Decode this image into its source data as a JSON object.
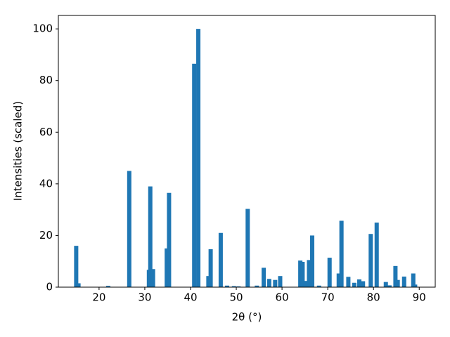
{
  "chart_data": {
    "type": "bar",
    "xlabel": "2θ (°)",
    "ylabel": "Intensities (scaled)",
    "x": [
      15.0,
      15.5,
      22.0,
      26.6,
      30.9,
      31.2,
      31.8,
      34.8,
      35.3,
      40.8,
      41.7,
      43.9,
      44.4,
      46.6,
      48.0,
      49.5,
      50.5,
      52.5,
      54.5,
      56.0,
      57.2,
      58.5,
      59.6,
      64.0,
      64.5,
      65.1,
      65.9,
      66.6,
      68.1,
      70.4,
      72.4,
      73.0,
      74.5,
      75.8,
      76.9,
      77.7,
      79.4,
      80.7,
      82.7,
      83.5,
      84.8,
      85.3,
      86.7,
      88.7,
      89.1
    ],
    "values": [
      16,
      1.5,
      0.5,
      45,
      6.7,
      39,
      7,
      15,
      36.5,
      86.5,
      100,
      4.3,
      14.7,
      21,
      0.6,
      0.4,
      0.3,
      30.3,
      0.6,
      7.5,
      3.2,
      2.8,
      4.3,
      10.3,
      9.8,
      2.4,
      10.5,
      20,
      0.6,
      11.4,
      5.3,
      25.7,
      4,
      1.7,
      3,
      2.3,
      20.6,
      25,
      2,
      0.7,
      8.2,
      2.8,
      4.1,
      5.3,
      1
    ],
    "color": "#1f77b4",
    "xlim": [
      11.1,
      93.5
    ],
    "xticks": [
      20,
      30,
      40,
      50,
      60,
      70,
      80,
      90
    ],
    "ylim": [
      0,
      105.2
    ],
    "yticks": [
      0,
      20,
      40,
      60,
      80,
      100
    ]
  }
}
